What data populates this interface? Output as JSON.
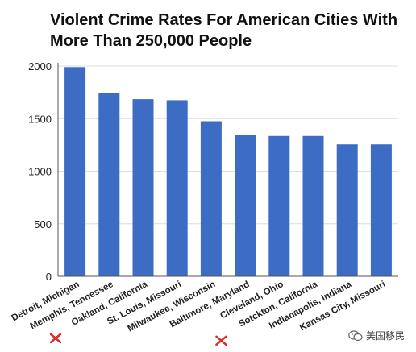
{
  "title": "Violent Crime Rates For American Cities With More Than 250,000 People",
  "colors": {
    "bar": "#3d6cc5",
    "grid": "#dcdcdc",
    "axis": "#555555",
    "marker": "#d92a2a"
  },
  "watermark": {
    "text": "美国移民",
    "icon": "wechat-logo-icon"
  },
  "chart_data": {
    "type": "bar",
    "title": "Violent Crime Rates For American Cities With More Than 250,000 People",
    "xlabel": "",
    "ylabel": "",
    "ylim": [
      0,
      2000
    ],
    "yticks": [
      0,
      500,
      1000,
      1500,
      2000
    ],
    "grid": true,
    "categories": [
      "Detroit, Michigan",
      "Memphis, Tennessee",
      "Oakland, California",
      "St. Louis, Missouri",
      "Milwaukee, Wisconsin",
      "Baltimore, Maryland",
      "Cleveland, Ohio",
      "Sotckton, California",
      "Indianapolis, Indiana",
      "Kansas City, Missouri"
    ],
    "values": [
      1990,
      1740,
      1685,
      1675,
      1475,
      1345,
      1335,
      1335,
      1255,
      1255
    ],
    "marked_categories": [
      "Oakland, California",
      "Sotckton, California"
    ]
  }
}
